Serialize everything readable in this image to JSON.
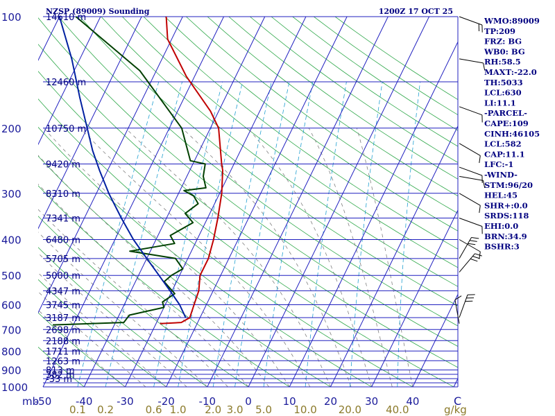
{
  "title_left": "NZSP (89009) Sounding",
  "title_right": "1200Z 17 OCT 25",
  "pressure_unit": "mb",
  "mixing_ratio_unit": "g/kg",
  "colors": {
    "isobar": "#1f1fbf",
    "isotherm": "#1f1fbf",
    "dry_adiabat": "#2fa84a",
    "moist_adiabat": "#7f7f7f",
    "mixing_ratio": "#20a0d0",
    "temperature": "#c00000",
    "dewpoint": "#004000",
    "parcel": "#0020a0",
    "text": "#000080",
    "mr_label": "#8b7a2a",
    "axis_label": "#1a1a9a"
  },
  "stats": [
    "WMO:89009",
    "TP:209",
    "FRZ: BG",
    "WB0: BG",
    "RH:58.5",
    "MAXT:-22.0",
    "TH:5033",
    "LCL:630",
    "LI:11.1",
    "-PARCEL-",
    "CAPE:109",
    "CINH:46105",
    "LCL:582",
    "CAP:11.1",
    "LFC:-1",
    "-WIND-",
    "STM:96/20",
    "HEL:45",
    "SHR+:0.0",
    "SRDS:118",
    "EHI:0.0",
    "BRN:34.9",
    "BSHR:3"
  ],
  "chart_data": {
    "type": "line",
    "title": "NZSP (89009) Sounding",
    "x_axis": {
      "label": "",
      "ticks": [
        -50,
        -40,
        -30,
        -20,
        -10,
        0,
        10,
        20,
        30,
        40
      ],
      "end_label": "C"
    },
    "y_axis": {
      "label": "mb",
      "scale": "log",
      "ticks": [
        100,
        200,
        300,
        400,
        500,
        600,
        700,
        800,
        900,
        1000
      ],
      "range": [
        100,
        1000
      ]
    },
    "isobars": [
      100,
      150,
      200,
      250,
      300,
      350,
      400,
      450,
      500,
      550,
      600,
      650,
      700,
      750,
      800,
      850,
      900,
      925,
      950,
      975,
      1000
    ],
    "height_labels": [
      {
        "p": 100,
        "height": "14610 m"
      },
      {
        "p": 150,
        "height": "12460 m"
      },
      {
        "p": 200,
        "height": "10750 m"
      },
      {
        "p": 250,
        "height": "9420 m"
      },
      {
        "p": 300,
        "height": "8310 m"
      },
      {
        "p": 350,
        "height": "7341 m"
      },
      {
        "p": 400,
        "height": "6480 m"
      },
      {
        "p": 450,
        "height": "5705 m"
      },
      {
        "p": 500,
        "height": "5000 m"
      },
      {
        "p": 550,
        "height": "4347 m"
      },
      {
        "p": 600,
        "height": "3745 m"
      },
      {
        "p": 650,
        "height": "3187 m"
      },
      {
        "p": 700,
        "height": "2698 m"
      },
      {
        "p": 750,
        "height": "2188 m"
      },
      {
        "p": 800,
        "height": "1711 m"
      },
      {
        "p": 850,
        "height": "1263 m"
      },
      {
        "p": 900,
        "height": "813 m"
      },
      {
        "p": 925,
        "height": "382 m"
      },
      {
        "p": 950,
        "height": "-33 m"
      }
    ],
    "mixing_ratio_labels": [
      "0.1",
      "0.2",
      "0.6",
      "1.0",
      "2.0",
      "3.0",
      "5.0",
      "10.0",
      "20.0",
      "40.0"
    ],
    "mixing_ratio_values": [
      0.1,
      0.2,
      0.6,
      1.0,
      2.0,
      3.0,
      5.0,
      10.0,
      20.0,
      40.0
    ],
    "series": [
      {
        "id": "temperature",
        "points": [
          [
            -29.0,
            675
          ],
          [
            -24.0,
            670
          ],
          [
            -22.5,
            650
          ],
          [
            -23.0,
            600
          ],
          [
            -23.5,
            550
          ],
          [
            -25.0,
            500
          ],
          [
            -25.0,
            450
          ],
          [
            -26.0,
            400
          ],
          [
            -27.5,
            350
          ],
          [
            -29.5,
            300
          ],
          [
            -32.0,
            260
          ],
          [
            -33.0,
            250
          ],
          [
            -38.0,
            200
          ],
          [
            -42.0,
            180
          ],
          [
            -52.0,
            145
          ],
          [
            -61.0,
            115
          ],
          [
            -64.0,
            100
          ]
        ]
      },
      {
        "id": "dewpoint",
        "points": [
          [
            -55.0,
            680
          ],
          [
            -38.0,
            670
          ],
          [
            -37.5,
            640
          ],
          [
            -30.0,
            610
          ],
          [
            -31.0,
            590
          ],
          [
            -29.0,
            560
          ],
          [
            -33.0,
            520
          ],
          [
            -32.0,
            500
          ],
          [
            -30.0,
            480
          ],
          [
            -33.0,
            450
          ],
          [
            -45.0,
            430
          ],
          [
            -35.0,
            410
          ],
          [
            -37.0,
            390
          ],
          [
            -33.0,
            360
          ],
          [
            -36.0,
            340
          ],
          [
            -34.0,
            320
          ],
          [
            -36.0,
            305
          ],
          [
            -39.0,
            295
          ],
          [
            -34.0,
            290
          ],
          [
            -36.0,
            270
          ],
          [
            -37.0,
            250
          ],
          [
            -41.0,
            245
          ],
          [
            -47.0,
            200
          ],
          [
            -64.0,
            140
          ],
          [
            -86.0,
            100
          ]
        ]
      },
      {
        "id": "parcel",
        "points": [
          [
            -23.5,
            650
          ],
          [
            -26.5,
            600
          ],
          [
            -30.5,
            550
          ],
          [
            -35.0,
            500
          ],
          [
            -40.0,
            450
          ],
          [
            -45.5,
            400
          ],
          [
            -51.0,
            350
          ],
          [
            -57.0,
            300
          ],
          [
            -62.0,
            260
          ],
          [
            -66.0,
            230
          ],
          [
            -70.0,
            200
          ],
          [
            -75.5,
            165
          ],
          [
            -82.0,
            130
          ],
          [
            -90.0,
            100
          ]
        ]
      }
    ],
    "winds": [
      {
        "p": 100,
        "dir": 110,
        "kt": 20
      },
      {
        "p": 130,
        "dir": 100,
        "kt": 10
      },
      {
        "p": 175,
        "dir": 110,
        "kt": 10
      },
      {
        "p": 220,
        "dir": 120,
        "kt": 10
      },
      {
        "p": 255,
        "dir": 110,
        "kt": 10
      },
      {
        "p": 270,
        "dir": 100,
        "kt": 10
      },
      {
        "p": 300,
        "dir": 120,
        "kt": 10
      },
      {
        "p": 350,
        "dir": 110,
        "kt": 10
      },
      {
        "p": 400,
        "dir": 120,
        "kt": 10
      },
      {
        "p": 450,
        "dir": 30,
        "kt": 30
      },
      {
        "p": 490,
        "dir": 40,
        "kt": 30
      },
      {
        "p": 650,
        "dir": 20,
        "kt": 30
      },
      {
        "p": 675,
        "dir": 350,
        "kt": 10
      }
    ]
  }
}
